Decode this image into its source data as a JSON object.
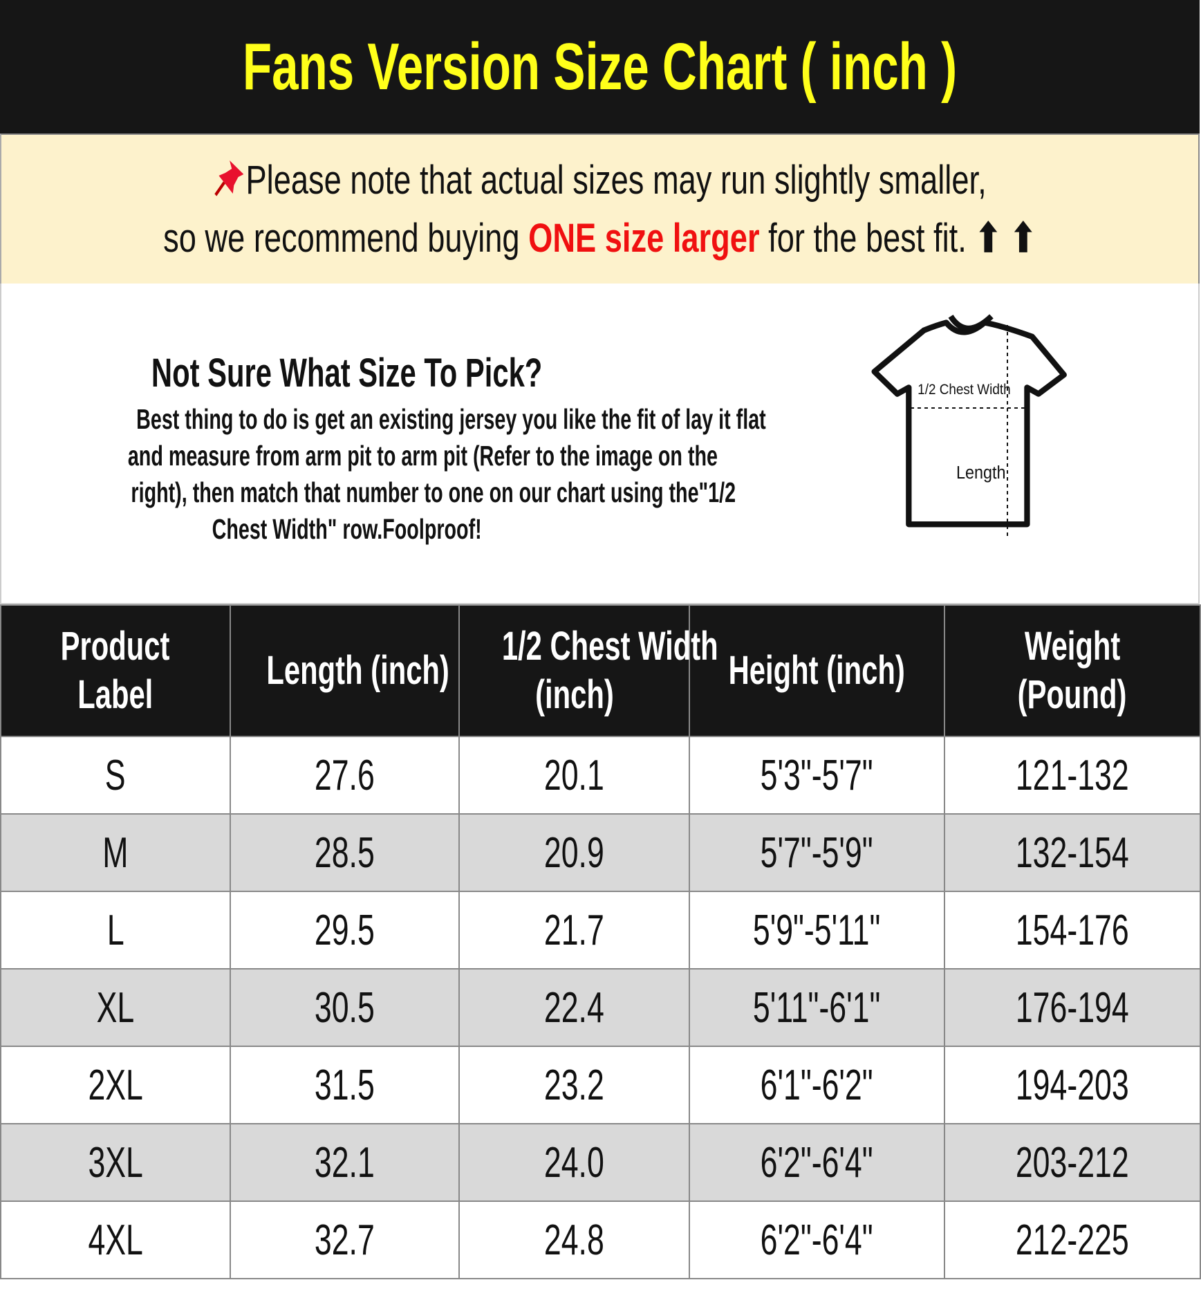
{
  "header": {
    "title": "Fans Version Size Chart ( inch )",
    "background": "#161616",
    "title_color": "#ffff1a"
  },
  "note": {
    "pin_icon": "pushpin-icon",
    "line1": "Please note that actual sizes may run slightly smaller,",
    "line2_before": "so we recommend buying ",
    "line2_highlight": "ONE size larger",
    "line2_after": " for the best fit.",
    "arrows": "⬆ ⬆",
    "highlight_color": "#f01010",
    "background": "#fdf2cc"
  },
  "info": {
    "title": "Not Sure What Size To Pick?",
    "body_lines": [
      "Best thing to do is get an existing jersey you like the fit of lay it flat",
      "and measure from arm pit to arm pit (Refer to the image on the",
      "right), then match that number to one on our chart using the\"1/2",
      "Chest Width\" row.Foolproof!"
    ],
    "diagram": {
      "chest_label": "1/2 Chest Width",
      "length_label": "Length"
    }
  },
  "table": {
    "headers": [
      [
        "Product",
        "Label"
      ],
      [
        "Length (inch)"
      ],
      [
        "1/2 Chest Width",
        "(inch)"
      ],
      [
        "Height (inch)"
      ],
      [
        "Weight",
        "(Pound)"
      ]
    ],
    "rows": [
      [
        "S",
        "27.6",
        "20.1",
        "5'3\"-5'7\"",
        "121-132"
      ],
      [
        "M",
        "28.5",
        "20.9",
        "5'7\"-5'9\"",
        "132-154"
      ],
      [
        "L",
        "29.5",
        "21.7",
        "5'9\"-5'11\"",
        "154-176"
      ],
      [
        "XL",
        "30.5",
        "22.4",
        "5'11\"-6'1\"",
        "176-194"
      ],
      [
        "2XL",
        "31.5",
        "23.2",
        "6'1\"-6'2\"",
        "194-203"
      ],
      [
        "3XL",
        "32.1",
        "24.0",
        "6'2\"-6'4\"",
        "203-212"
      ],
      [
        "4XL",
        "32.7",
        "24.8",
        "6'2\"-6'4\"",
        "212-225"
      ]
    ]
  }
}
